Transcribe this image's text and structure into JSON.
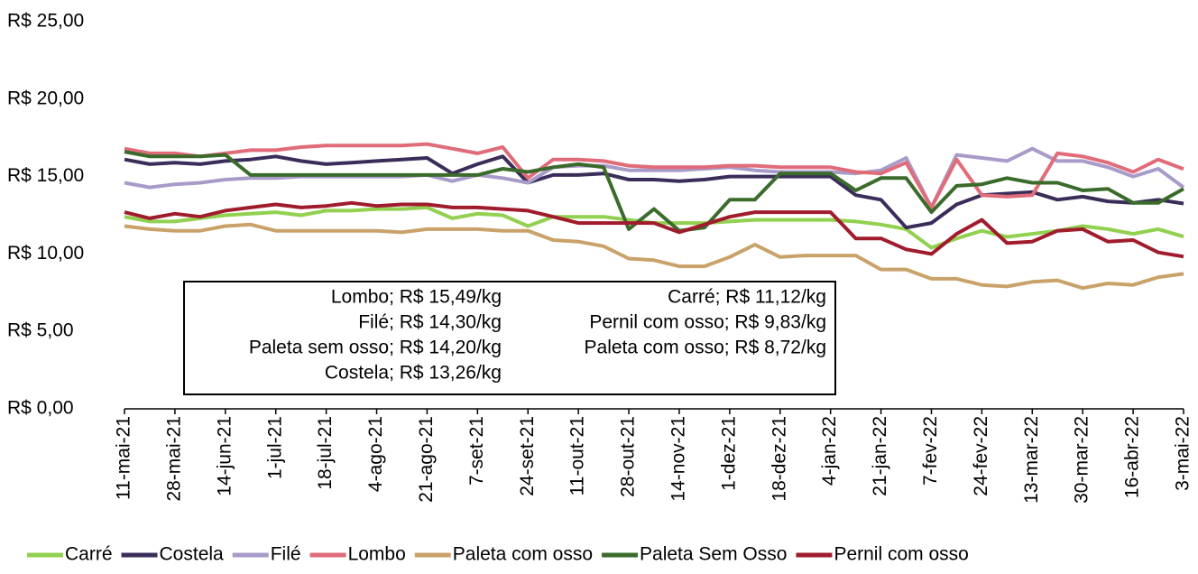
{
  "chart_data": {
    "type": "line",
    "categories": [
      "11-mai-21",
      null,
      "28-mai-21",
      null,
      "14-jun-21",
      null,
      "1-jul-21",
      null,
      "18-jul-21",
      null,
      "4-ago-21",
      null,
      "21-ago-21",
      null,
      "7-set-21",
      null,
      "24-set-21",
      null,
      "11-out-21",
      null,
      "28-out-21",
      null,
      "14-nov-21",
      null,
      "1-dez-21",
      null,
      "18-dez-21",
      null,
      "4-jan-22",
      null,
      "21-jan-22",
      null,
      "7-fev-22",
      null,
      "24-fev-22",
      null,
      "13-mar-22",
      null,
      "30-mar-22",
      null,
      "16-abr-22",
      null,
      "3-mai-22"
    ],
    "series": [
      {
        "name": "Carré",
        "color": "#92d050",
        "values": [
          12.4,
          12.1,
          12.1,
          12.3,
          12.5,
          12.6,
          12.7,
          12.5,
          12.8,
          12.8,
          12.9,
          12.9,
          13.0,
          12.3,
          12.6,
          12.5,
          11.8,
          12.4,
          12.4,
          12.4,
          12.2,
          12.0,
          12.0,
          12.0,
          12.1,
          12.2,
          12.2,
          12.2,
          12.2,
          12.1,
          11.9,
          11.6,
          10.4,
          11.0,
          11.5,
          11.1,
          11.3,
          11.5,
          11.8,
          11.6,
          11.3,
          11.6,
          11.12
        ]
      },
      {
        "name": "Costela",
        "color": "#3b2d5a",
        "values": [
          16.1,
          15.8,
          15.9,
          15.8,
          16.0,
          16.1,
          16.3,
          16.0,
          15.8,
          15.9,
          16.0,
          16.1,
          16.2,
          15.2,
          15.8,
          16.3,
          14.6,
          15.1,
          15.1,
          15.2,
          14.8,
          14.8,
          14.7,
          14.8,
          15.0,
          15.0,
          15.0,
          15.0,
          15.0,
          13.8,
          13.5,
          11.7,
          12.0,
          13.2,
          13.8,
          13.9,
          14.0,
          13.5,
          13.7,
          13.4,
          13.3,
          13.5,
          13.26
        ]
      },
      {
        "name": "Filé",
        "color": "#a99bc9",
        "values": [
          14.6,
          14.3,
          14.5,
          14.6,
          14.8,
          14.9,
          14.9,
          15.0,
          15.0,
          15.0,
          15.0,
          15.0,
          15.1,
          14.7,
          15.1,
          14.9,
          14.6,
          15.6,
          15.7,
          15.7,
          15.4,
          15.4,
          15.4,
          15.5,
          15.6,
          15.4,
          15.3,
          15.3,
          15.3,
          15.2,
          15.4,
          16.2,
          13.0,
          16.4,
          16.2,
          16.0,
          16.8,
          16.0,
          16.0,
          15.6,
          15.0,
          15.5,
          14.3
        ]
      },
      {
        "name": "Lombo",
        "color": "#e06c7a",
        "values": [
          16.8,
          16.5,
          16.5,
          16.3,
          16.5,
          16.7,
          16.7,
          16.9,
          17.0,
          17.0,
          17.0,
          17.0,
          17.1,
          16.8,
          16.5,
          16.9,
          14.9,
          16.1,
          16.1,
          16.0,
          15.7,
          15.6,
          15.6,
          15.6,
          15.7,
          15.7,
          15.6,
          15.6,
          15.6,
          15.3,
          15.2,
          15.9,
          13.0,
          16.1,
          13.8,
          13.7,
          13.8,
          16.5,
          16.3,
          15.9,
          15.3,
          16.1,
          15.49
        ]
      },
      {
        "name": "Paleta com osso",
        "color": "#c9a26a",
        "values": [
          11.8,
          11.6,
          11.5,
          11.5,
          11.8,
          11.9,
          11.5,
          11.5,
          11.5,
          11.5,
          11.5,
          11.4,
          11.6,
          11.6,
          11.6,
          11.5,
          11.5,
          10.9,
          10.8,
          10.5,
          9.7,
          9.6,
          9.2,
          9.2,
          9.8,
          10.6,
          9.8,
          9.9,
          9.9,
          9.9,
          9.0,
          9.0,
          8.4,
          8.4,
          8.0,
          7.9,
          8.2,
          8.3,
          7.8,
          8.1,
          8.0,
          8.5,
          8.72
        ]
      },
      {
        "name": "Paleta Sem Osso",
        "color": "#3a6b2b",
        "values": [
          16.6,
          16.3,
          16.3,
          16.3,
          16.4,
          15.1,
          15.1,
          15.1,
          15.1,
          15.1,
          15.1,
          15.1,
          15.1,
          15.1,
          15.1,
          15.5,
          15.3,
          15.6,
          15.8,
          15.6,
          11.6,
          12.9,
          11.5,
          11.7,
          13.5,
          13.5,
          15.2,
          15.2,
          15.2,
          14.1,
          14.9,
          14.9,
          12.7,
          14.4,
          14.5,
          14.9,
          14.6,
          14.6,
          14.1,
          14.2,
          13.3,
          13.3,
          14.2
        ]
      },
      {
        "name": "Pernil com osso",
        "color": "#a01c2c",
        "values": [
          12.7,
          12.3,
          12.6,
          12.4,
          12.8,
          13.0,
          13.2,
          13.0,
          13.1,
          13.3,
          13.1,
          13.2,
          13.2,
          13.0,
          13.0,
          12.9,
          12.8,
          12.4,
          12.0,
          12.0,
          12.0,
          12.0,
          11.4,
          11.9,
          12.4,
          12.7,
          12.7,
          12.7,
          12.7,
          11.0,
          11.0,
          10.3,
          10.0,
          11.3,
          12.2,
          10.7,
          10.8,
          11.5,
          11.6,
          10.8,
          10.9,
          10.1,
          9.83
        ]
      }
    ],
    "ylim": [
      0,
      25
    ],
    "yticks": [
      {
        "value": 0,
        "label": "R$ 0,00"
      },
      {
        "value": 5,
        "label": "R$ 5,00"
      },
      {
        "value": 10,
        "label": "R$ 10,00"
      },
      {
        "value": 15,
        "label": "R$ 15,00"
      },
      {
        "value": 20,
        "label": "R$ 20,00"
      },
      {
        "value": 25,
        "label": "R$ 25,00"
      }
    ],
    "grid": false,
    "legend": "bottom",
    "annotations": [
      "Lombo; R$ 15,49/kg",
      "Filé; R$ 14,30/kg",
      "Paleta sem osso; R$ 14,20/kg",
      "Costela; R$ 13,26/kg",
      "Carré; R$ 11,12/kg",
      "Pernil com osso; R$ 9,83/kg",
      "Paleta com osso; R$ 8,72/kg"
    ]
  }
}
